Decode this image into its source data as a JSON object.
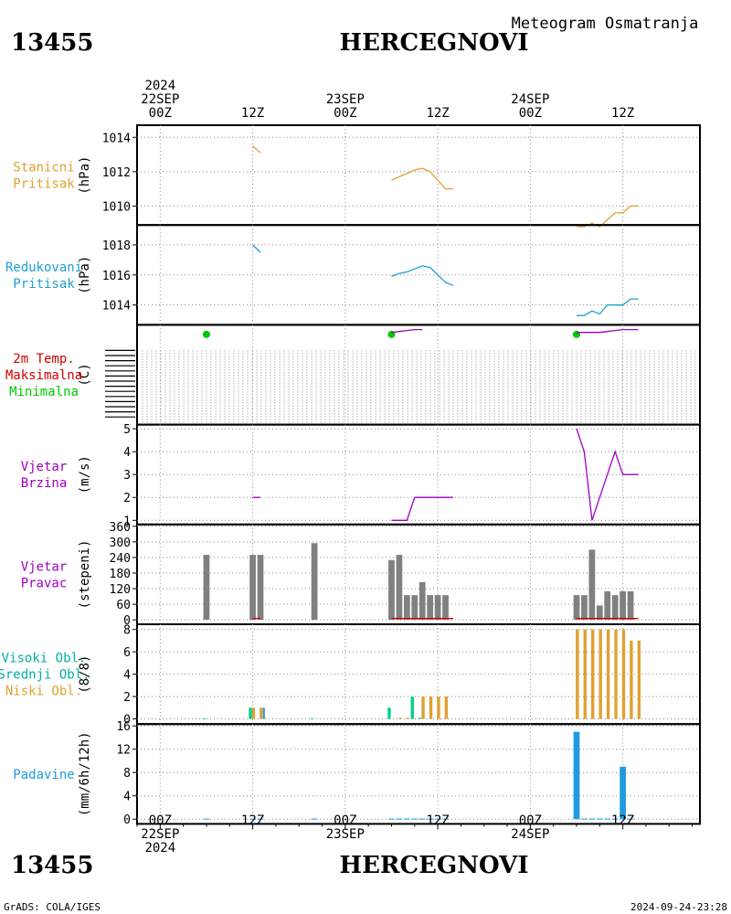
{
  "header": {
    "station_id": "13455",
    "station_name": "HERCEGNOVI",
    "subtitle": "Meteogram Osmatranja"
  },
  "footer": {
    "station_id": "13455",
    "station_name": "HERCEGNOVI",
    "credit": "GrADS: COLA/IGES",
    "timestamp": "2024-09-24-23:28"
  },
  "colors": {
    "orange": "#e0a030",
    "cyan": "#1ea0d0",
    "magenta": "#a000c0",
    "red": "#d00000",
    "green": "#00c800",
    "teal": "#00b0a0",
    "gray": "#808080",
    "blue": "#1e9be0",
    "dark_green": "#00d08a"
  },
  "chart_data": {
    "type": "meteogram",
    "time_axis": {
      "top_labels": [
        {
          "hour": 0,
          "lines": [
            "2024",
            "22SEP",
            "00Z"
          ]
        },
        {
          "hour": 12,
          "lines": [
            "12Z"
          ]
        },
        {
          "hour": 24,
          "lines": [
            "23SEP",
            "00Z"
          ]
        },
        {
          "hour": 36,
          "lines": [
            "12Z"
          ]
        },
        {
          "hour": 48,
          "lines": [
            "24SEP",
            "00Z"
          ]
        },
        {
          "hour": 60,
          "lines": [
            "12Z"
          ]
        }
      ],
      "bottom_labels": [
        {
          "hour": 0,
          "lines": [
            "00Z",
            "22SEP",
            "2024"
          ]
        },
        {
          "hour": 12,
          "lines": [
            "12Z"
          ]
        },
        {
          "hour": 24,
          "lines": [
            "00Z",
            "23SEP"
          ]
        },
        {
          "hour": 36,
          "lines": [
            "12Z"
          ]
        },
        {
          "hour": 48,
          "lines": [
            "00Z",
            "24SEP"
          ]
        },
        {
          "hour": 60,
          "lines": [
            "12Z"
          ]
        }
      ],
      "range_hours": [
        -3,
        70
      ]
    },
    "panels": [
      {
        "id": "station-pressure",
        "labels": [
          {
            "text": "Stanicni",
            "color": "orange"
          },
          {
            "text": "Pritisak",
            "color": "orange"
          }
        ],
        "unit": "(hPa)",
        "ylim": [
          1009,
          1014.6
        ],
        "yticks": [
          1010,
          1012,
          1014
        ],
        "series": [
          {
            "kind": "line",
            "color": "orange",
            "points": [
              [
                12,
                1013.5
              ],
              [
                13,
                1013.1
              ]
            ]
          },
          {
            "kind": "line",
            "color": "orange",
            "points": [
              [
                30,
                1011.5
              ],
              [
                31,
                1011.7
              ],
              [
                32,
                1011.9
              ],
              [
                33,
                1012.1
              ],
              [
                34,
                1012.2
              ],
              [
                35,
                1012.0
              ],
              [
                36,
                1011.5
              ],
              [
                37,
                1011.0
              ],
              [
                38,
                1011.0
              ]
            ]
          },
          {
            "kind": "line",
            "color": "orange",
            "points": [
              [
                54,
                1008.8
              ],
              [
                55,
                1008.8
              ],
              [
                56,
                1009.0
              ],
              [
                57,
                1008.8
              ],
              [
                58,
                1009.2
              ],
              [
                59,
                1009.6
              ],
              [
                60,
                1009.6
              ],
              [
                61,
                1010.0
              ],
              [
                62,
                1010.0
              ]
            ]
          }
        ]
      },
      {
        "id": "reduced-pressure",
        "labels": [
          {
            "text": "Redukovani",
            "color": "cyan"
          },
          {
            "text": "Pritisak",
            "color": "cyan"
          }
        ],
        "unit": "(hPa)",
        "ylim": [
          1012.8,
          1019.2
        ],
        "yticks": [
          1014,
          1016,
          1018
        ],
        "series": [
          {
            "kind": "line",
            "color": "cyan",
            "points": [
              [
                12,
                1018.0
              ],
              [
                13,
                1017.5
              ]
            ]
          },
          {
            "kind": "line",
            "color": "cyan",
            "points": [
              [
                30,
                1015.9
              ],
              [
                31,
                1016.1
              ],
              [
                32,
                1016.2
              ],
              [
                33,
                1016.4
              ],
              [
                34,
                1016.6
              ],
              [
                35,
                1016.5
              ],
              [
                36,
                1016.0
              ],
              [
                37,
                1015.5
              ],
              [
                38,
                1015.3
              ]
            ]
          },
          {
            "kind": "line",
            "color": "cyan",
            "points": [
              [
                54,
                1013.3
              ],
              [
                55,
                1013.3
              ],
              [
                56,
                1013.6
              ],
              [
                57,
                1013.4
              ],
              [
                58,
                1014.0
              ],
              [
                59,
                1014.0
              ],
              [
                60,
                1014.0
              ],
              [
                61,
                1014.4
              ],
              [
                62,
                1014.4
              ]
            ]
          }
        ]
      },
      {
        "id": "temperature",
        "labels": [
          {
            "text": "2m Temp.",
            "color": "red"
          },
          {
            "text": "Maksimalna",
            "color": "red"
          },
          {
            "text": "Minimalna",
            "color": "green"
          }
        ],
        "unit": "(C)",
        "ylim": [
          0,
          1
        ],
        "yticks": [],
        "series": [
          {
            "kind": "dots",
            "color": "green",
            "points": [
              [
                6,
                0.92
              ],
              [
                30,
                0.92
              ],
              [
                54,
                0.92
              ]
            ]
          },
          {
            "kind": "line",
            "color": "magenta",
            "points": [
              [
                30,
                0.94
              ],
              [
                31,
                0.95
              ],
              [
                32,
                0.96
              ],
              [
                33,
                0.97
              ],
              [
                34,
                0.97
              ]
            ]
          },
          {
            "kind": "line",
            "color": "magenta",
            "points": [
              [
                54,
                0.94
              ],
              [
                55,
                0.94
              ],
              [
                56,
                0.94
              ],
              [
                57,
                0.94
              ],
              [
                58,
                0.95
              ],
              [
                59,
                0.96
              ],
              [
                60,
                0.97
              ],
              [
                61,
                0.97
              ],
              [
                62,
                0.97
              ]
            ]
          }
        ]
      },
      {
        "id": "wind-speed",
        "labels": [
          {
            "text": "Vjetar",
            "color": "magenta"
          },
          {
            "text": "Brzina",
            "color": "magenta"
          }
        ],
        "unit": "(m/s)",
        "ylim": [
          0.9,
          5.1
        ],
        "yticks": [
          1,
          2,
          3,
          4,
          5
        ],
        "series": [
          {
            "kind": "line",
            "color": "magenta",
            "points": [
              [
                12,
                2
              ],
              [
                13,
                2
              ]
            ]
          },
          {
            "kind": "line",
            "color": "magenta",
            "points": [
              [
                30,
                1
              ],
              [
                31,
                1
              ],
              [
                32,
                1
              ],
              [
                33,
                2
              ],
              [
                34,
                2
              ],
              [
                35,
                2
              ],
              [
                36,
                2
              ],
              [
                37,
                2
              ],
              [
                38,
                2
              ]
            ]
          },
          {
            "kind": "line",
            "color": "magenta",
            "points": [
              [
                54,
                5
              ],
              [
                55,
                4
              ],
              [
                56,
                1
              ],
              [
                57,
                2
              ],
              [
                58,
                3
              ],
              [
                59,
                4
              ],
              [
                60,
                3
              ],
              [
                61,
                3
              ],
              [
                62,
                3
              ]
            ]
          }
        ]
      },
      {
        "id": "wind-direction",
        "labels": [
          {
            "text": "Vjetar",
            "color": "magenta"
          },
          {
            "text": "Pravac",
            "color": "magenta"
          }
        ],
        "unit": "(stepeni)",
        "ylim": [
          -10,
          360
        ],
        "yticks": [
          0,
          60,
          120,
          180,
          240,
          300,
          360
        ],
        "series": [
          {
            "kind": "bars",
            "color": "gray",
            "width": 0.8,
            "points": [
              [
                6,
                250
              ],
              [
                12,
                250
              ],
              [
                13,
                250
              ],
              [
                20,
                295
              ],
              [
                30,
                230
              ],
              [
                31,
                250
              ],
              [
                32,
                95
              ],
              [
                33,
                95
              ],
              [
                34,
                145
              ],
              [
                35,
                95
              ],
              [
                36,
                95
              ],
              [
                37,
                95
              ],
              [
                54,
                95
              ],
              [
                55,
                95
              ],
              [
                56,
                270
              ],
              [
                57,
                55
              ],
              [
                58,
                110
              ],
              [
                59,
                95
              ],
              [
                60,
                110
              ],
              [
                61,
                110
              ]
            ]
          },
          {
            "kind": "line",
            "color": "red",
            "points": [
              [
                12,
                5
              ],
              [
                13,
                5
              ]
            ]
          },
          {
            "kind": "line",
            "color": "red",
            "points": [
              [
                30,
                5
              ],
              [
                38,
                5
              ]
            ]
          },
          {
            "kind": "line",
            "color": "red",
            "points": [
              [
                54,
                5
              ],
              [
                62,
                5
              ]
            ]
          }
        ]
      },
      {
        "id": "cloud-cover",
        "labels": [
          {
            "text": "Visoki Obl.",
            "color": "teal"
          },
          {
            "text": "Srednji Obl.",
            "color": "teal"
          },
          {
            "text": "Niski Obl.",
            "color": "orange"
          }
        ],
        "unit": "(8/8)",
        "ylim": [
          -0.3,
          8.3
        ],
        "yticks": [
          0,
          2,
          4,
          6,
          8
        ],
        "series": [
          {
            "kind": "bars",
            "color": "orange",
            "width": 0.4,
            "offset": 0.1,
            "points": [
              [
                12,
                1
              ],
              [
                13,
                1
              ],
              [
                31,
                0.1
              ],
              [
                32,
                0.1
              ],
              [
                34,
                2
              ],
              [
                35,
                2
              ],
              [
                36,
                2
              ],
              [
                37,
                2
              ],
              [
                54,
                8
              ],
              [
                55,
                8
              ],
              [
                56,
                8
              ],
              [
                57,
                8
              ],
              [
                58,
                8
              ],
              [
                59,
                8
              ],
              [
                60,
                8
              ],
              [
                61,
                7
              ],
              [
                62,
                7
              ]
            ]
          },
          {
            "kind": "bars",
            "color": "dark_green",
            "width": 0.4,
            "offset": -0.3,
            "points": [
              [
                6,
                0.05
              ],
              [
                12,
                1
              ],
              [
                20,
                0.05
              ],
              [
                30,
                1
              ],
              [
                33,
                2
              ],
              [
                34,
                0.1
              ]
            ]
          },
          {
            "kind": "bars",
            "color": "blue",
            "width": 0.25,
            "offset": 0.45,
            "points": [
              [
                13,
                1
              ]
            ]
          }
        ]
      },
      {
        "id": "precipitation",
        "labels": [
          {
            "text": "Padavine",
            "color": "blue"
          }
        ],
        "unit": "(mm/6h/12h)",
        "ylim": [
          -0.5,
          16
        ],
        "yticks": [
          0,
          4,
          8,
          12,
          16
        ],
        "series": [
          {
            "kind": "bars",
            "color": "blue",
            "width": 0.8,
            "points": [
              [
                54,
                15
              ],
              [
                60,
                9
              ],
              [
                6,
                0.1
              ],
              [
                12,
                0.1
              ],
              [
                13,
                0.1
              ],
              [
                20,
                0.1
              ],
              [
                30,
                0.1
              ],
              [
                31,
                0.1
              ],
              [
                32,
                0.1
              ],
              [
                33,
                0.1
              ],
              [
                34,
                0.1
              ],
              [
                35,
                0.1
              ],
              [
                36,
                0.1
              ],
              [
                37,
                0.1
              ],
              [
                55,
                0.1
              ],
              [
                56,
                0.1
              ],
              [
                57,
                0.1
              ],
              [
                58,
                0.1
              ],
              [
                59,
                0.1
              ],
              [
                61,
                0.1
              ]
            ]
          }
        ]
      }
    ]
  }
}
